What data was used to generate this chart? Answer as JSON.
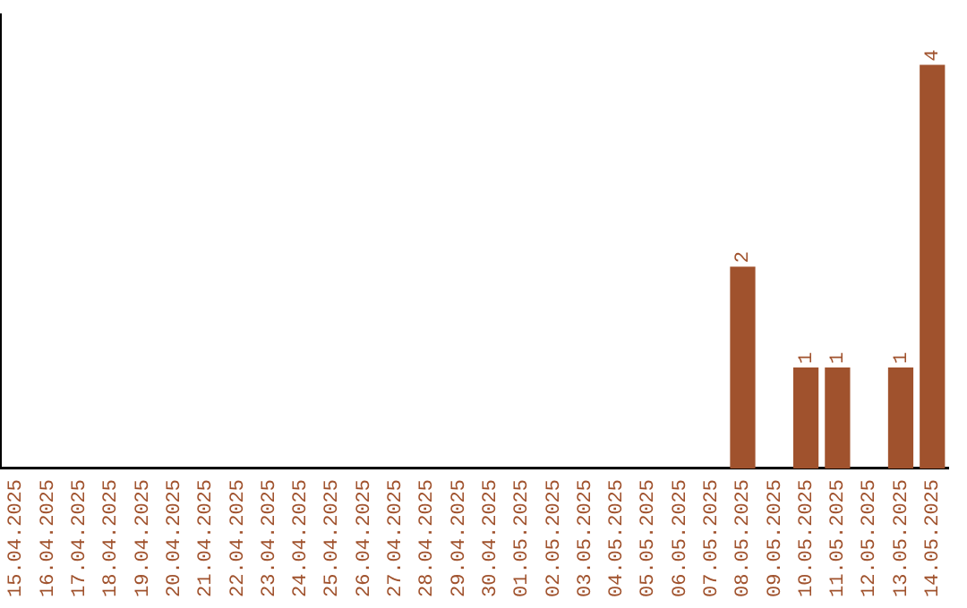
{
  "chart_data": {
    "type": "bar",
    "categories": [
      "15.04.2025",
      "16.04.2025",
      "17.04.2025",
      "18.04.2025",
      "19.04.2025",
      "20.04.2025",
      "21.04.2025",
      "22.04.2025",
      "23.04.2025",
      "24.04.2025",
      "25.04.2025",
      "26.04.2025",
      "27.04.2025",
      "28.04.2025",
      "29.04.2025",
      "30.04.2025",
      "01.05.2025",
      "02.05.2025",
      "03.05.2025",
      "04.05.2025",
      "05.05.2025",
      "06.05.2025",
      "07.05.2025",
      "08.05.2025",
      "09.05.2025",
      "10.05.2025",
      "11.05.2025",
      "12.05.2025",
      "13.05.2025",
      "14.05.2025"
    ],
    "values": [
      null,
      null,
      null,
      null,
      null,
      null,
      null,
      null,
      null,
      null,
      null,
      null,
      null,
      null,
      null,
      null,
      null,
      null,
      null,
      null,
      null,
      null,
      null,
      2,
      null,
      1,
      1,
      null,
      1,
      4
    ],
    "data_labels": true,
    "color": "#a0522d",
    "grid": false,
    "legend": false,
    "tick_labels": "x"
  }
}
